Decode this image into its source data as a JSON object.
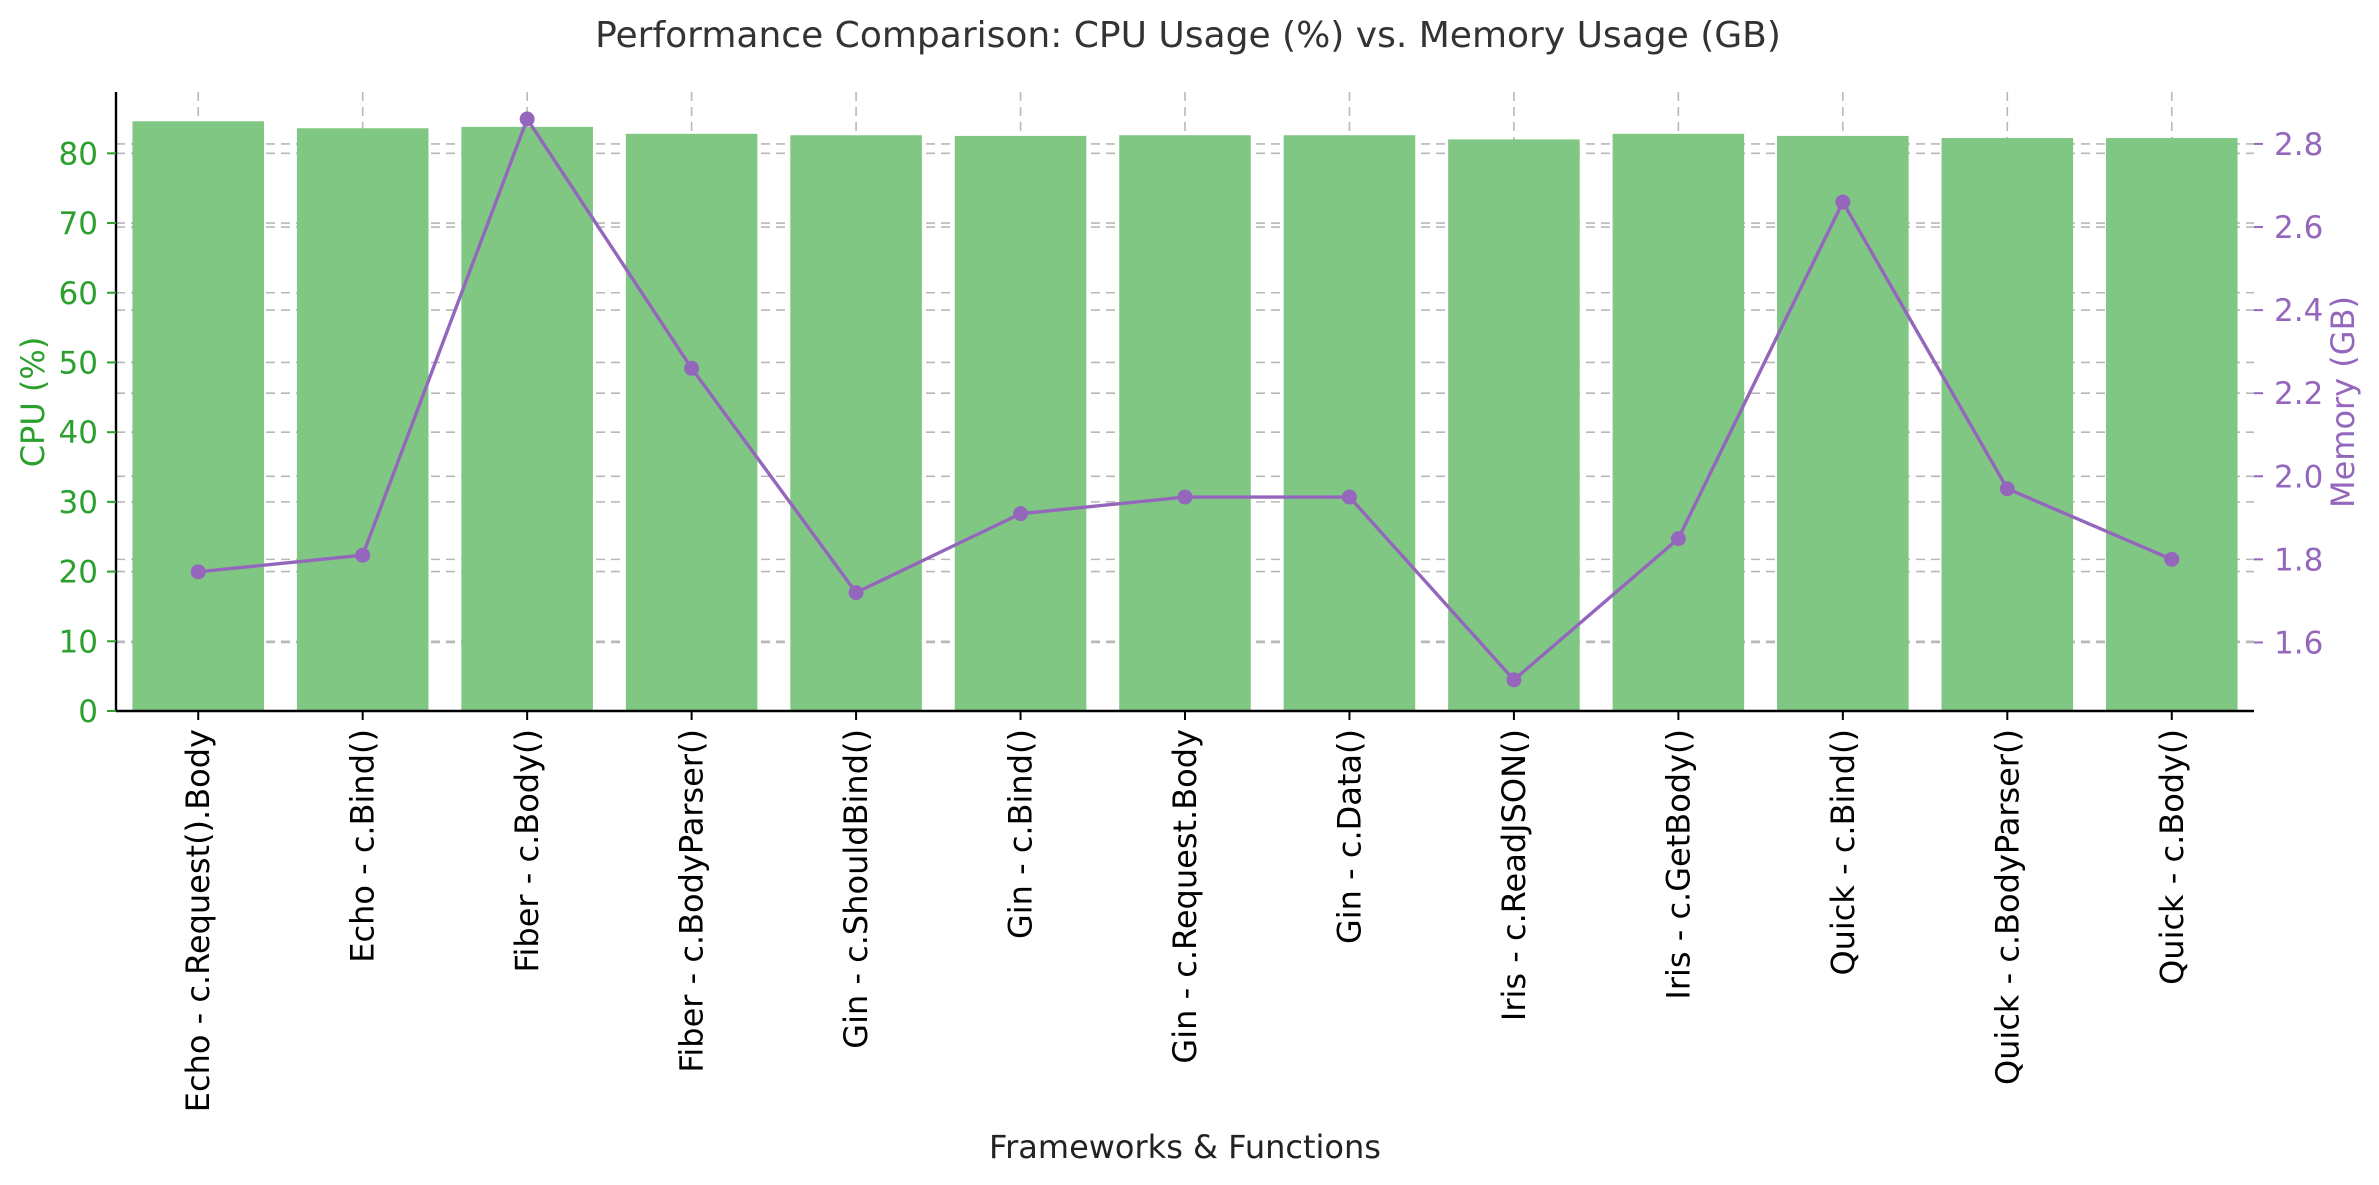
{
  "chart_data": {
    "type": "bar",
    "title": "Performance Comparison: CPU Usage (%) vs. Memory Usage (GB)",
    "xlabel": "Frameworks & Functions",
    "ylabel_left": "CPU (%)",
    "ylabel_right": "Memory (GB)",
    "categories": [
      "Echo - c.Request().Body",
      "Echo - c.Bind()",
      "Fiber - c.Body()",
      "Fiber - c.BodyParser()",
      "Gin - c.ShouldBind()",
      "Gin - c.Bind()",
      "Gin - c.Request.Body",
      "Gin - c.Data()",
      "Iris - c.ReadJSON()",
      "Iris - c.GetBody()",
      "Quick - c.Bind()",
      "Quick - c.BodyParser()",
      "Quick - c.Body()"
    ],
    "series": [
      {
        "type": "bar",
        "axis": "left",
        "values": [
          84.6,
          83.6,
          83.8,
          82.8,
          82.6,
          82.5,
          82.6,
          82.6,
          82.0,
          82.8,
          82.5,
          82.2,
          82.2
        ],
        "color": "#81c784"
      },
      {
        "type": "line",
        "axis": "right",
        "values": [
          1.77,
          1.81,
          2.86,
          2.26,
          1.72,
          1.91,
          1.95,
          1.95,
          1.51,
          1.85,
          2.66,
          1.97,
          1.8
        ],
        "color": "#9467bd"
      }
    ],
    "ylim_left": [
      0,
      88.8
    ],
    "ylim_right": [
      1.435,
      2.925
    ],
    "yticks_left": [
      0,
      10,
      20,
      30,
      40,
      50,
      60,
      70,
      80
    ],
    "yticks_right": [
      1.6,
      1.8,
      2.0,
      2.2,
      2.4,
      2.6,
      2.8
    ],
    "yticklabels_left": [
      "0",
      "10",
      "20",
      "30",
      "40",
      "50",
      "60",
      "70",
      "80"
    ],
    "yticklabels_right": [
      "1.6",
      "1.8",
      "2.0",
      "2.2",
      "2.4",
      "2.6",
      "2.8"
    ],
    "grid": true,
    "colors": {
      "left_axis": "#2ca02c",
      "right_axis": "#9467bd",
      "text": "#333333"
    }
  }
}
